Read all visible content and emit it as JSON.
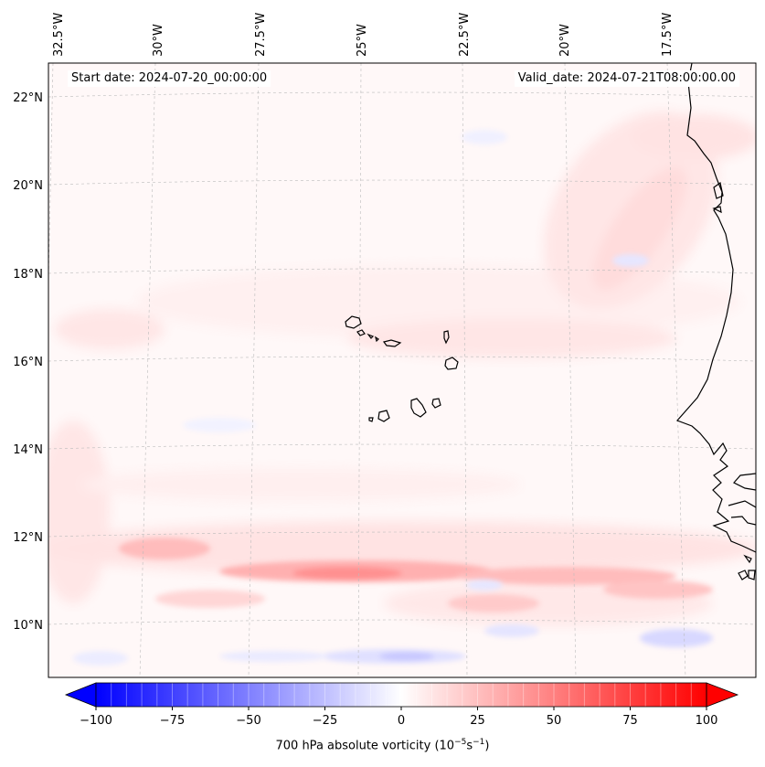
{
  "map": {
    "start_date": "Start date: 2024-07-20_00:00:00",
    "valid_date": "Valid_date: 2024-07-21T08:00:00.00",
    "lon_labels": [
      "32.5°W",
      "30°W",
      "27.5°W",
      "25°W",
      "22.5°W",
      "20°W",
      "17.5°W"
    ],
    "lat_labels": [
      "22°N",
      "20°N",
      "18°N",
      "16°N",
      "14°N",
      "12°N",
      "10°N"
    ],
    "field": "700 hPa absolute vorticity",
    "projection": "conic (curved parallels)",
    "gridlines": true,
    "features": [
      "Cape Verde islands",
      "West African coastline (Mauritania, Senegal, Gambia, Guinea-Bissau)"
    ],
    "vorticity_band": "maximum positive vorticity band along ~11°N from ~31°W to ~17°W"
  },
  "colorbar": {
    "ticks": [
      "−100",
      "−75",
      "−50",
      "−25",
      "0",
      "25",
      "50",
      "75",
      "100"
    ],
    "label_text": "700 hPa absolute vorticity (10",
    "label_exp1": "−5",
    "label_mid": "s",
    "label_exp2": "−1",
    "label_end": ")",
    "colormap": "bwr",
    "range": [
      -100,
      100
    ],
    "extend": "both",
    "colors": {
      "min": "#0000ff",
      "mid": "#ffffff",
      "max": "#ff0000"
    }
  }
}
